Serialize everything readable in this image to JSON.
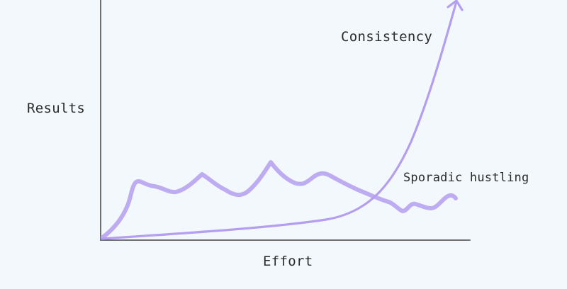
{
  "diagram": {
    "axes": {
      "y_label": "Results",
      "x_label": "Effort"
    },
    "curves": [
      {
        "id": "consistency",
        "label": "Consistency",
        "color": "#b39ef0",
        "shape": "exponential"
      },
      {
        "id": "sporadic",
        "label": "Sporadic hustling",
        "color": "#b39ef0",
        "shape": "wavy"
      }
    ],
    "axis_color": "#6e6e6e"
  }
}
